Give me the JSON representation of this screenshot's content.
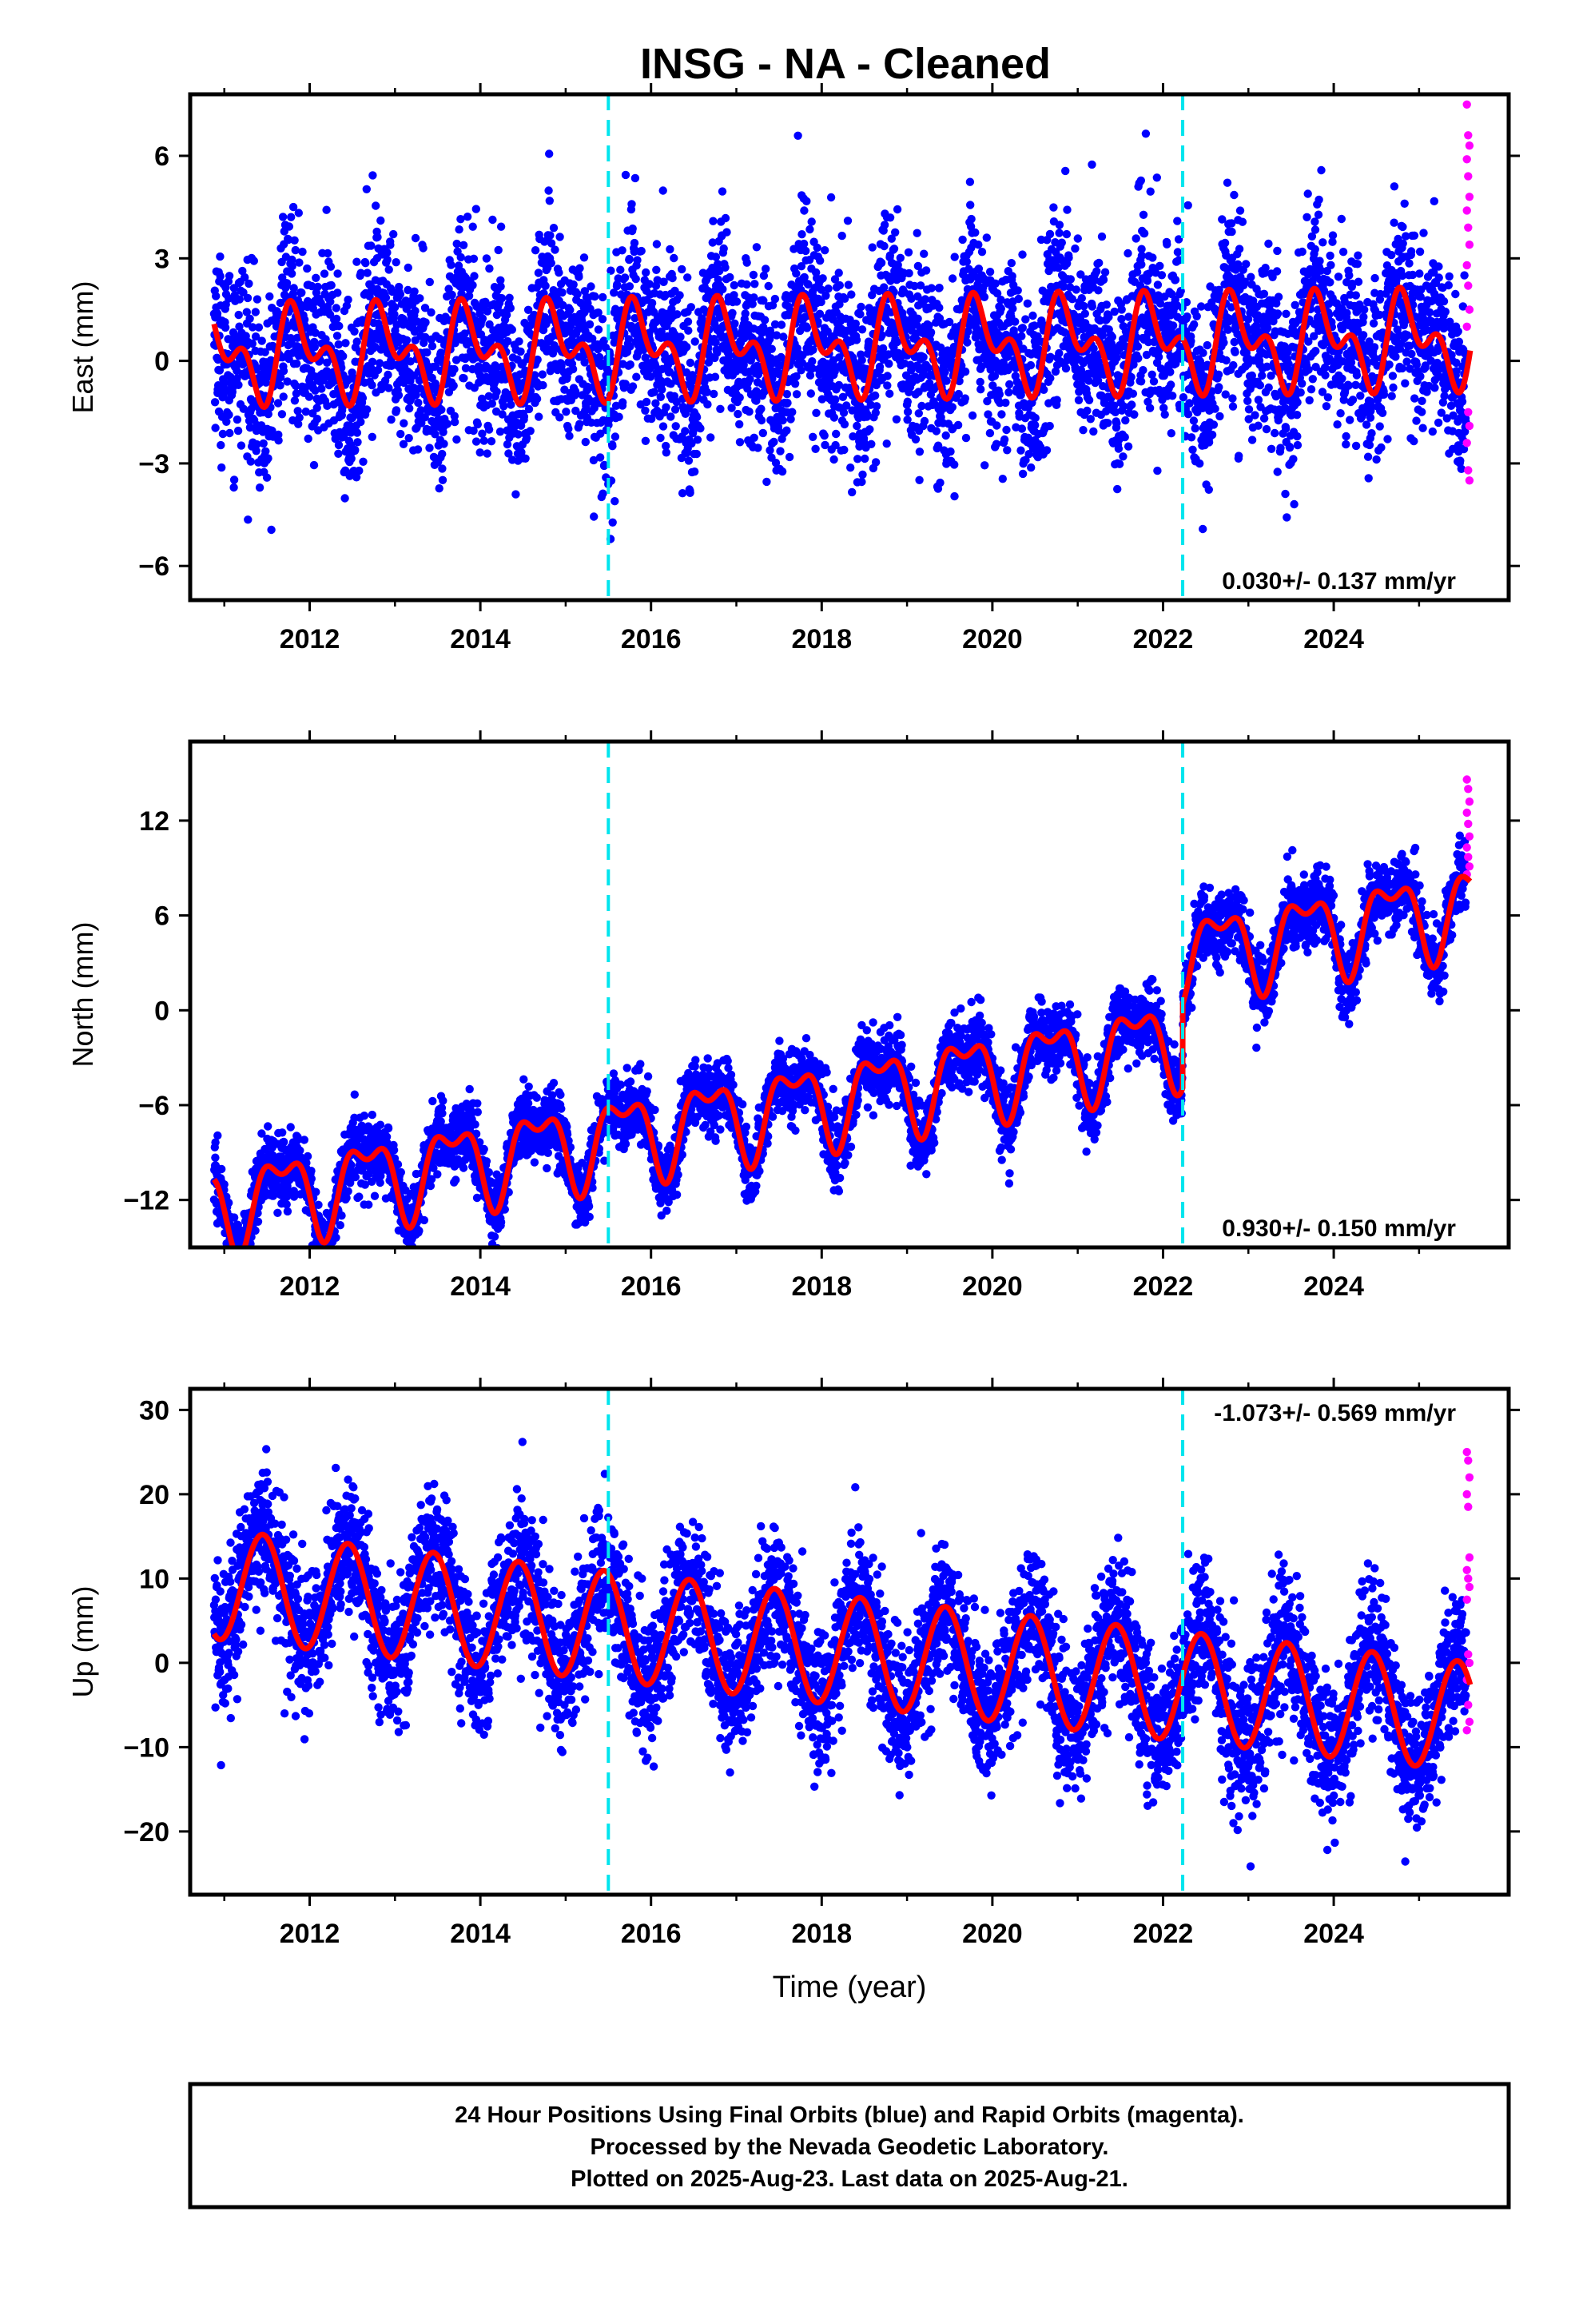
{
  "title": "INSG  - NA - Cleaned",
  "colors": {
    "final_orbits": "#0000ff",
    "rapid_orbits": "#ff00ff",
    "model_fit": "#ff0000",
    "equipment_change": "#00e5ee"
  },
  "caption": {
    "line1": "24 Hour Positions Using Final Orbits (blue) and Rapid Orbits (magenta).",
    "line2": "Processed by the Nevada Geodetic Laboratory.",
    "line3": "Plotted on 2025-Aug-23. Last data on 2025-Aug-21."
  },
  "chart_data": [
    {
      "type": "scatter",
      "id": "east",
      "ylabel": "East (mm)",
      "xlabel": "",
      "xlim": [
        2010.6,
        2026.05
      ],
      "ylim": [
        -7.0,
        7.8
      ],
      "xticks": [
        2012,
        2014,
        2016,
        2018,
        2020,
        2022,
        2024
      ],
      "yticks": [
        -6,
        -3,
        0,
        3,
        6
      ],
      "ytick_labels": [
        "−6",
        "−3",
        "0",
        "3",
        "6"
      ],
      "breaks": [
        2015.5,
        2022.23
      ],
      "rate_text": "0.030+/- 0.137 mm/yr",
      "rate_position": "bottom-right",
      "model": {
        "amp1": 1.0,
        "phase1": 0.62,
        "amp2": 0.78,
        "phase2": 0.12,
        "trend": 0.03,
        "offset": 0.4,
        "jump": 0.0
      },
      "noise": 1.35,
      "points_final": 5400,
      "rapid_y": [
        7.5,
        6.6,
        6.3,
        5.9,
        5.4,
        4.8,
        4.4,
        3.9,
        3.4,
        2.8,
        2.2,
        1.5,
        1.0,
        -1.5,
        -1.9,
        -2.4,
        -3.2,
        -3.5
      ]
    },
    {
      "type": "scatter",
      "id": "north",
      "ylabel": "North (mm)",
      "xlabel": "",
      "xlim": [
        2010.6,
        2026.05
      ],
      "ylim": [
        -15.0,
        17.0
      ],
      "xticks": [
        2012,
        2014,
        2016,
        2018,
        2020,
        2022,
        2024
      ],
      "yticks": [
        -12,
        -6,
        0,
        6,
        12
      ],
      "ytick_labels": [
        "−12",
        "−6",
        "0",
        "6",
        "12"
      ],
      "breaks": [
        2015.5,
        2022.23
      ],
      "rate_text": "0.930+/- 0.150 mm/yr",
      "rate_position": "bottom-right",
      "model": {
        "amp1": 2.4,
        "phase1": 0.42,
        "amp2": 1.2,
        "phase2": 0.3,
        "trend": 0.93,
        "offset": -5.5,
        "jump": 5.3
      },
      "noise": 1.1,
      "points_final": 5400,
      "rapid_y": [
        14.6,
        14.0,
        13.2,
        12.5,
        11.8,
        11.0,
        10.3,
        9.7,
        9.1,
        8.6
      ]
    },
    {
      "type": "scatter",
      "id": "up",
      "ylabel": "Up (mm)",
      "xlabel": "Time (year)",
      "xlim": [
        2010.6,
        2026.05
      ],
      "ylim": [
        -27.5,
        32.5
      ],
      "xticks": [
        2012,
        2014,
        2016,
        2018,
        2020,
        2022,
        2024
      ],
      "yticks": [
        -20,
        -10,
        0,
        10,
        20,
        30
      ],
      "ytick_labels": [
        "−20",
        "−10",
        "0",
        "10",
        "20",
        "30"
      ],
      "breaks": [
        2015.5,
        2022.23
      ],
      "rate_text": "-1.073+/- 0.569 mm/yr",
      "rate_position": "top-right",
      "model": {
        "amp1": 6.5,
        "phase1": 0.2,
        "amp2": 0.0,
        "phase2": 0.0,
        "trend": -1.07,
        "offset": 1.5,
        "jump": 0.0
      },
      "noise": 4.2,
      "points_final": 5400,
      "rapid_y": [
        25.0,
        24.0,
        22.0,
        20.0,
        18.5,
        12.5,
        11.0,
        10.0,
        9.0,
        7.5,
        1.0,
        0.0,
        -2.0,
        -5.0,
        -7.0,
        -8.0
      ]
    }
  ]
}
